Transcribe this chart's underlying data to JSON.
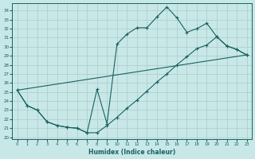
{
  "xlabel": "Humidex (Indice chaleur)",
  "bg_color": "#c8e8e8",
  "grid_color": "#b0d0d0",
  "line_color": "#1a6060",
  "xlim": [
    -0.5,
    23.5
  ],
  "ylim": [
    19.8,
    34.8
  ],
  "yticks": [
    20,
    21,
    22,
    23,
    24,
    25,
    26,
    27,
    28,
    29,
    30,
    31,
    32,
    33,
    34
  ],
  "xticks": [
    0,
    1,
    2,
    3,
    4,
    5,
    6,
    7,
    8,
    9,
    10,
    11,
    12,
    13,
    14,
    15,
    16,
    17,
    18,
    19,
    20,
    21,
    22,
    23
  ],
  "line1_x": [
    0,
    1,
    2,
    3,
    4,
    5,
    6,
    7,
    8,
    9,
    10,
    11,
    12,
    13,
    14,
    15,
    16,
    17,
    18,
    19,
    20,
    21,
    22,
    23
  ],
  "line1_y": [
    25.2,
    23.5,
    23.0,
    21.7,
    21.3,
    21.1,
    21.0,
    20.5,
    25.3,
    21.5,
    30.3,
    31.4,
    32.1,
    32.1,
    33.3,
    34.4,
    33.2,
    31.6,
    32.0,
    32.6,
    31.1,
    30.1,
    29.7,
    29.1
  ],
  "line2_x": [
    0,
    1,
    2,
    3,
    4,
    5,
    6,
    7,
    8,
    9,
    10,
    11,
    12,
    13,
    14,
    15,
    16,
    17,
    18,
    19,
    20,
    21,
    22,
    23
  ],
  "line2_y": [
    25.2,
    23.5,
    23.0,
    21.7,
    21.3,
    21.1,
    21.0,
    20.5,
    20.5,
    21.3,
    22.2,
    23.2,
    24.1,
    25.1,
    26.1,
    27.0,
    28.0,
    28.9,
    29.8,
    30.2,
    31.1,
    30.1,
    29.7,
    29.1
  ],
  "line3_x": [
    0,
    23
  ],
  "line3_y": [
    25.2,
    29.1
  ]
}
